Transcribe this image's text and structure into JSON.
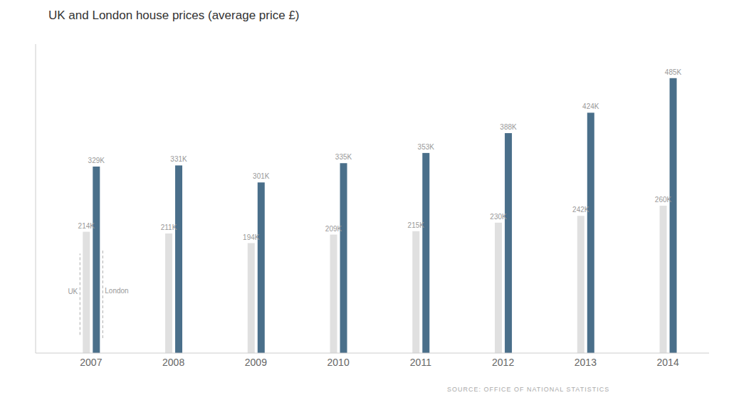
{
  "chart_data": {
    "type": "bar",
    "title": "UK and London house prices (average price £)",
    "categories": [
      "2007",
      "2008",
      "2009",
      "2010",
      "2011",
      "2012",
      "2013",
      "2014"
    ],
    "series": [
      {
        "name": "UK",
        "color": "#e0e0e0",
        "values": [
          214,
          211,
          194,
          209,
          215,
          230,
          242,
          260
        ],
        "value_labels": [
          "214K",
          "211K",
          "194K",
          "209K",
          "215K",
          "230K",
          "242K",
          "260K"
        ]
      },
      {
        "name": "London",
        "color": "#4a6f8a",
        "values": [
          329,
          331,
          301,
          335,
          353,
          388,
          424,
          485
        ],
        "value_labels": [
          "329K",
          "331K",
          "301K",
          "335K",
          "353K",
          "388K",
          "424K",
          "485K"
        ]
      }
    ],
    "ylim": [
      0,
      545
    ],
    "grid": false,
    "data_labels": true,
    "tick_labels": "x",
    "annotations": [
      "SOURCE: OFFICE OF NATIONAL STATISTICS"
    ]
  }
}
